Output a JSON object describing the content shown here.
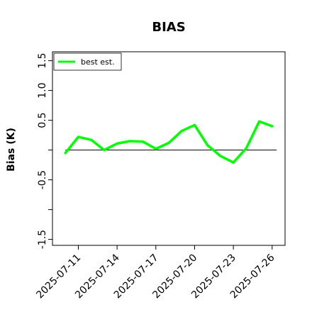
{
  "chart_data": {
    "type": "line",
    "title": "BIAS",
    "xlabel": "",
    "ylabel": "Bias (K)",
    "x": [
      "2025-07-10",
      "2025-07-11",
      "2025-07-12",
      "2025-07-13",
      "2025-07-14",
      "2025-07-15",
      "2025-07-16",
      "2025-07-17",
      "2025-07-18",
      "2025-07-19",
      "2025-07-20",
      "2025-07-21",
      "2025-07-22",
      "2025-07-23",
      "2025-07-24",
      "2025-07-25",
      "2025-07-26"
    ],
    "series": [
      {
        "name": "best est.",
        "color": "#00ff00",
        "values": [
          -0.05,
          0.22,
          0.17,
          0.0,
          0.11,
          0.15,
          0.14,
          0.02,
          0.12,
          0.32,
          0.42,
          0.08,
          -0.1,
          -0.21,
          0.03,
          0.48,
          0.4
        ]
      }
    ],
    "reference_line": {
      "y": 0.0,
      "color": "#000000"
    },
    "xticks": [
      "2025-07-11",
      "2025-07-14",
      "2025-07-17",
      "2025-07-20",
      "2025-07-23",
      "2025-07-26"
    ],
    "yticks": [
      {
        "value": -1.5,
        "label": "-1.5"
      },
      {
        "value": -1.0,
        "label": ""
      },
      {
        "value": -0.5,
        "label": "-0.5"
      },
      {
        "value": 0.0,
        "label": ""
      },
      {
        "value": 0.5,
        "label": "0.5"
      },
      {
        "value": 1.0,
        "label": "1.0"
      },
      {
        "value": 1.5,
        "label": "1.5"
      }
    ],
    "ylim": [
      -1.6,
      1.65
    ],
    "xlim": [
      "2025-07-09",
      "2025-07-27"
    ],
    "grid": false,
    "legend": "top-left"
  }
}
